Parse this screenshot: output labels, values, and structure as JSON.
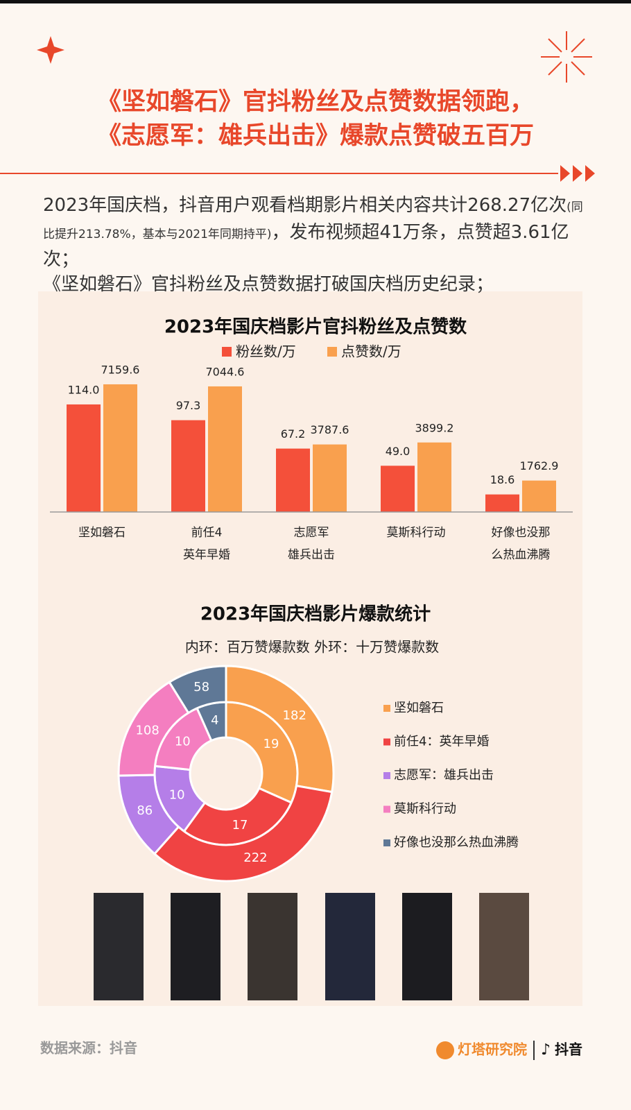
{
  "header": {
    "title_lines": [
      "《坚如磐石》官抖粉丝及点赞数据领跑，",
      "《志愿军：雄兵出击》爆款点赞破五百万"
    ]
  },
  "intro": {
    "paragraphs": [
      [
        "2023年国庆档，抖音用户观看档期影片相关内容共计268.27亿次",
        "(同比提升213.78%，基本与2021年同期持平)",
        "，发布视频超41万条，点赞超3.61亿次；"
      ],
      [
        "《坚如磐石》官抖粉丝及点赞数据打破国庆档历史纪录；"
      ]
    ]
  },
  "chart_data": [
    {
      "type": "bar",
      "title": "2023年国庆档影片官抖粉丝及点赞数",
      "categories": [
        "坚如磐石",
        "前任4\n英年早婚",
        "志愿军\n雄兵出击",
        "莫斯科行动",
        "好像也没那\n么热血沸腾"
      ],
      "series": [
        {
          "name": "粉丝数/万",
          "color": "#f4503a",
          "values": [
            114,
            97.3,
            67.2,
            49,
            18.6
          ],
          "value_labels": [
            "114.0",
            "97.3",
            "67.2",
            "49.0",
            "18.6"
          ]
        },
        {
          "name": "点赞数/万",
          "color": "#f9a04e",
          "axis": "y2",
          "values": [
            7159.6,
            7044.6,
            3787.6,
            3899.2,
            1762.9
          ]
        }
      ],
      "ylim": [
        0,
        175
      ],
      "y2lim": [
        0,
        9260
      ]
    },
    {
      "type": "donut",
      "title": "2023年国庆档影片爆款统计",
      "subtitle": "内环：百万赞爆款数  外环：十万赞爆款数",
      "categories": [
        "坚如磐石",
        "前任4：英年早婚",
        "志愿军：雄兵出击",
        "莫斯科行动",
        "好像也没那么热血沸腾"
      ],
      "colors": [
        "#f9a04e",
        "#f04343",
        "#b57ee8",
        "#f47ec0",
        "#5f7896"
      ],
      "series": [
        {
          "values": [
            19,
            17,
            10,
            10,
            4
          ]
        },
        {
          "values": [
            182,
            222,
            86,
            108,
            58
          ]
        }
      ]
    }
  ],
  "footer": {
    "source": "数据来源：抖音",
    "brand": "灯塔研究院",
    "platform": "抖音"
  }
}
